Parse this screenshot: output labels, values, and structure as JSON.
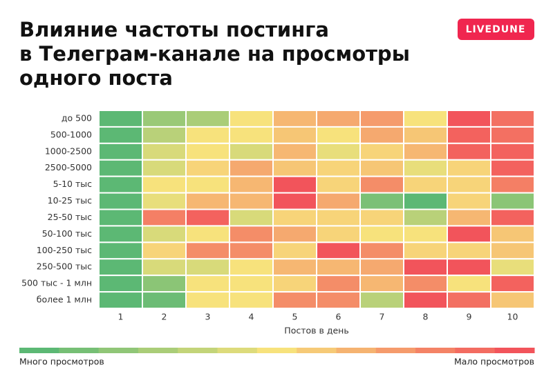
{
  "chart_data": {
    "type": "heatmap",
    "title": [
      "Влияние частоты постинга",
      "в Телеграм-канале на просмотры",
      "одного поста"
    ],
    "brand": "LIVEDUNE",
    "x_label": "Постов в день",
    "categories": [
      "1",
      "2",
      "3",
      "4",
      "5",
      "6",
      "7",
      "8",
      "9",
      "10"
    ],
    "rows": [
      "до 500",
      "500-1000",
      "1000-2500",
      "2500-5000",
      "5-10 тыс",
      "10-25 тыс",
      "25-50 тыс",
      "50-100 тыс",
      "100-250 тыс",
      "250-500 тыс",
      "500 тыс - 1 млн",
      "более 1 млн"
    ],
    "values": [
      [
        0,
        2,
        2.5,
        5,
        6.5,
        7,
        7.5,
        5,
        10,
        9
      ],
      [
        0,
        3,
        5,
        5,
        6,
        5,
        7,
        6,
        9.5,
        9
      ],
      [
        0,
        4,
        5,
        4,
        6.5,
        4.5,
        5.5,
        6.5,
        9.5,
        9.5
      ],
      [
        0,
        4,
        5.5,
        7,
        6,
        5.5,
        6,
        4.5,
        5.5,
        9.5
      ],
      [
        0,
        5,
        5,
        6.5,
        10,
        5.5,
        8,
        5.5,
        5.5,
        8.5
      ],
      [
        0,
        4.5,
        6.5,
        6.5,
        10,
        7,
        1,
        0,
        5.5,
        1.5
      ],
      [
        0,
        8.5,
        9.5,
        4,
        5.5,
        5.5,
        5.5,
        3,
        6.5,
        9.5
      ],
      [
        0,
        4,
        5,
        8,
        7,
        5.5,
        5,
        5,
        10,
        6
      ],
      [
        0,
        5.5,
        8,
        8,
        5.5,
        10,
        8,
        5.5,
        5.5,
        6
      ],
      [
        0,
        4,
        4,
        5,
        6.5,
        6.5,
        7,
        10,
        10,
        4.5
      ],
      [
        0,
        1.5,
        5,
        5,
        5.5,
        8,
        6.5,
        8,
        5,
        9.5
      ],
      [
        0,
        0.5,
        5,
        5,
        8,
        8,
        3,
        10,
        9,
        6
      ]
    ],
    "vlim": [
      0,
      10
    ],
    "colorscale": [
      "#5cb874",
      "#f7e27c",
      "#f2545b"
    ],
    "legend_low": "Много просмотров",
    "legend_high": "Мало просмотров"
  }
}
